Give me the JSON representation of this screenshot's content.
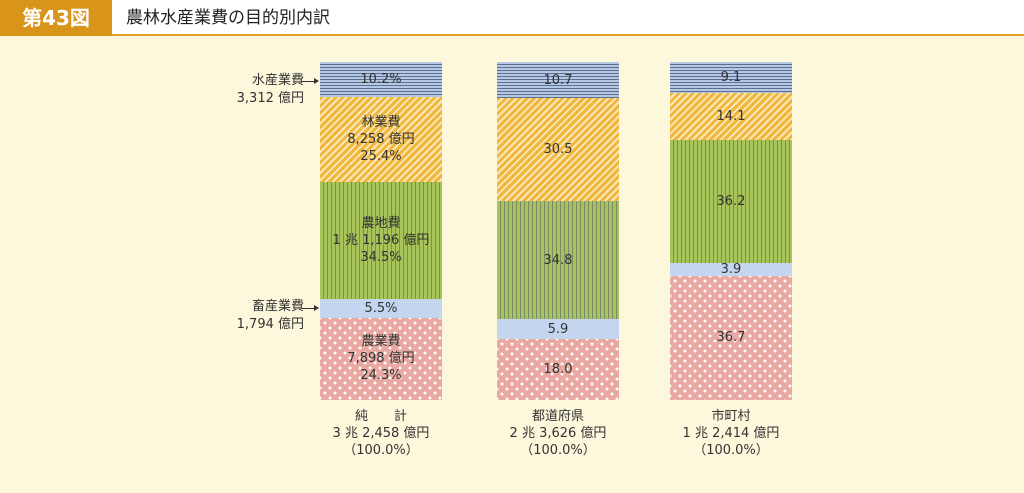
{
  "header": {
    "badge": "第43図",
    "title": "農林水産業費の目的別内訳"
  },
  "side_labels": {
    "fish": {
      "name": "水産業費",
      "amount": "3,312 億円"
    },
    "livestock": {
      "name": "畜産業費",
      "amount": "1,794 億円"
    }
  },
  "colors": {
    "fish": "#b5c8e6",
    "forest": "#f0b73c",
    "farm": "#a7c45a",
    "livestock": "#c4d5ef",
    "agri": "#e9a9a2"
  },
  "chart_data": {
    "type": "bar",
    "stacked": true,
    "title": "農林水産業費の目的別内訳",
    "segments": [
      "水産業費",
      "林業費",
      "農地費",
      "畜産業費",
      "農業費"
    ],
    "categories": [
      {
        "name": "純　　計",
        "total": "3 兆 2,458 億円",
        "pct": "（100.0%）"
      },
      {
        "name": "都道府県",
        "total": "2 兆 3,626 億円",
        "pct": "（100.0%）"
      },
      {
        "name": "市町村",
        "total": "1 兆 2,414 億円",
        "pct": "（100.0%）"
      }
    ],
    "series": [
      {
        "name": "水産業費",
        "key": "fish",
        "values": [
          10.2,
          10.7,
          9.1
        ],
        "labels": [
          [
            "10.2%"
          ],
          [
            "10.7"
          ],
          [
            "9.1"
          ]
        ]
      },
      {
        "name": "林業費",
        "key": "forest",
        "values": [
          25.4,
          30.5,
          14.1
        ],
        "labels": [
          [
            "林業費",
            "8,258 億円",
            "25.4%"
          ],
          [
            "30.5"
          ],
          [
            "14.1"
          ]
        ]
      },
      {
        "name": "農地費",
        "key": "farm",
        "values": [
          34.5,
          34.8,
          36.2
        ],
        "labels": [
          [
            "農地費",
            "1 兆 1,196 億円",
            "34.5%"
          ],
          [
            "34.8"
          ],
          [
            "36.2"
          ]
        ]
      },
      {
        "name": "畜産業費",
        "key": "live",
        "values": [
          5.5,
          5.9,
          3.9
        ],
        "labels": [
          [
            "5.5%"
          ],
          [
            "5.9"
          ],
          [
            "3.9"
          ]
        ]
      },
      {
        "name": "農業費",
        "key": "agri",
        "values": [
          24.3,
          18.0,
          36.7
        ],
        "labels": [
          [
            "農業費",
            "7,898 億円",
            "24.3%"
          ],
          [
            "18.0"
          ],
          [
            "36.7"
          ]
        ]
      }
    ],
    "unit": "%"
  }
}
